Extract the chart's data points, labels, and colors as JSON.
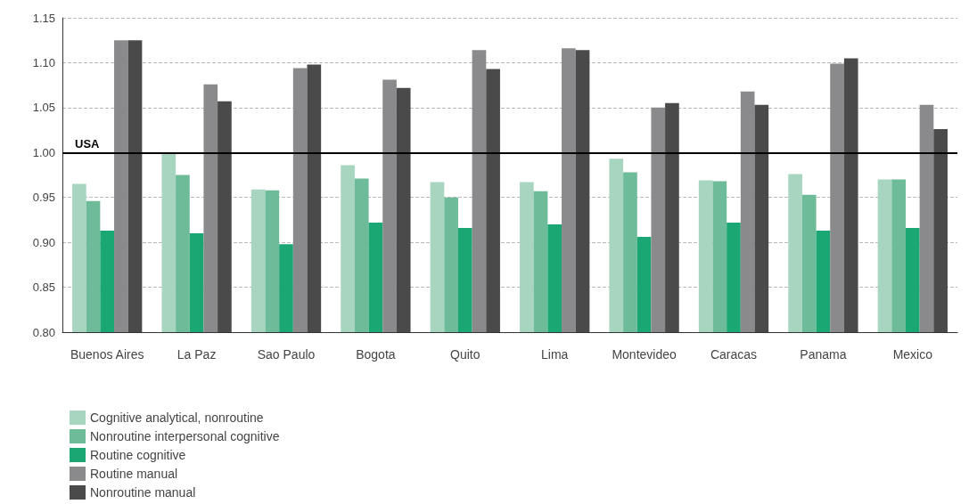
{
  "chart_data": {
    "type": "bar",
    "categories": [
      "Buenos Aires",
      "La Paz",
      "Sao Paulo",
      "Bogota",
      "Quito",
      "Lima",
      "Montevideo",
      "Caracas",
      "Panama",
      "Mexico"
    ],
    "series": [
      {
        "name": "Cognitive analytical, nonroutine",
        "color": "#a8d5bf",
        "values": [
          0.965,
          0.999,
          0.959,
          0.986,
          0.967,
          0.967,
          0.993,
          0.969,
          0.976,
          0.97
        ]
      },
      {
        "name": "Nonroutine interpersonal cognitive",
        "color": "#6dbb98",
        "values": [
          0.946,
          0.975,
          0.958,
          0.971,
          0.95,
          0.957,
          0.978,
          0.968,
          0.953,
          0.97
        ]
      },
      {
        "name": "Routine cognitive",
        "color": "#1aa774",
        "values": [
          0.913,
          0.91,
          0.898,
          0.922,
          0.916,
          0.92,
          0.906,
          0.922,
          0.913,
          0.916
        ]
      },
      {
        "name": "Routine manual",
        "color": "#8a8a8c",
        "values": [
          1.125,
          1.076,
          1.094,
          1.081,
          1.114,
          1.116,
          1.05,
          1.068,
          1.099,
          1.053
        ]
      },
      {
        "name": "Nonroutine manual",
        "color": "#4a4a4a",
        "values": [
          1.125,
          1.057,
          1.098,
          1.072,
          1.093,
          1.114,
          1.055,
          1.053,
          1.105,
          1.026
        ]
      }
    ],
    "ylim": [
      0.8,
      1.15
    ],
    "yticks": [
      {
        "value": 0.8,
        "label": "0.80"
      },
      {
        "value": 0.85,
        "label": "0.85"
      },
      {
        "value": 0.9,
        "label": "0.90"
      },
      {
        "value": 0.95,
        "label": "0.95"
      },
      {
        "value": 1.0,
        "label": "1.00"
      },
      {
        "value": 1.05,
        "label": "1.05"
      },
      {
        "value": 1.1,
        "label": "1.10"
      },
      {
        "value": 1.15,
        "label": "1.15"
      }
    ],
    "ref_lines": [
      {
        "axis": "y",
        "value": 1.0,
        "label": "USA",
        "color": "#000000"
      }
    ],
    "grid": "y",
    "legend": "bottom left"
  }
}
